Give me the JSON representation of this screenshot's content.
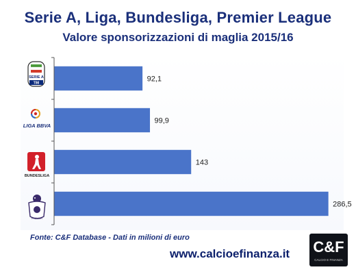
{
  "header": {
    "title": "Serie A, Liga, Bundesliga, Premier League",
    "subtitle": "Valore sponsorizzazioni di maglia 2015/16"
  },
  "chart_data": {
    "type": "bar",
    "orientation": "horizontal",
    "categories": [
      "Serie A TIM",
      "Liga BBVA",
      "Bundesliga",
      "Premier League"
    ],
    "values": [
      92.1,
      99.9,
      143,
      286.5
    ],
    "value_labels": [
      "92,1",
      "99,9",
      "143",
      "286,5"
    ],
    "title": "Serie A, Liga, Bundesliga, Premier League",
    "subtitle": "Valore sponsorizzazioni di maglia 2015/16",
    "xlabel": "",
    "ylabel": "",
    "xlim": [
      0,
      300
    ],
    "grid": false,
    "legend": "none",
    "bar_color": "#4a74c9"
  },
  "logos": {
    "serie_a": {
      "line1": "SERIE A",
      "line2": "TIM"
    },
    "liga": {
      "text": "LIGA BBVA"
    },
    "bundesliga": {
      "text": "BUNDESLIGA"
    },
    "premier": {
      "text": "PREMIER"
    }
  },
  "footer": {
    "source": "Fonte: C&F Database - Dati in milioni di euro",
    "website": "www.calcioefinanza.it",
    "brand_logo": "C&F",
    "brand_logo_sub": "CALCIO E FINANZA"
  },
  "colors": {
    "title": "#1a2f7a",
    "bar": "#4a74c9",
    "axis": "#555555"
  }
}
